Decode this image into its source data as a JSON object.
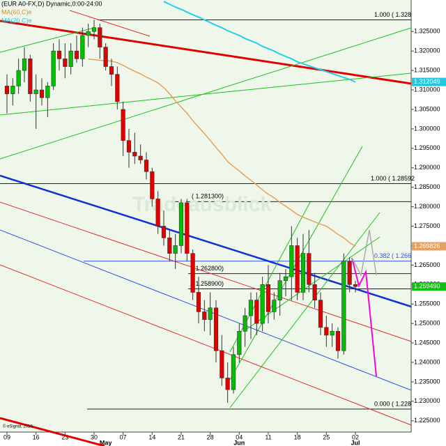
{
  "chart_data": {
    "type": "candlestick",
    "title": "(EUR A0-FX,D) Dynamic,0:00-24:00",
    "indicators": [
      {
        "name": "MA(60,C)e",
        "color": "#d08a3a"
      },
      {
        "name": "MA(20,C)e",
        "color": "#20c8e0"
      }
    ],
    "watermark": "Tradeausblick",
    "copyright": "© eSignal, 2010",
    "categories": [
      "09",
      null,
      null,
      null,
      null,
      "16",
      null,
      null,
      null,
      null,
      "23",
      null,
      null,
      null,
      null,
      "30",
      null,
      null,
      null,
      null,
      "07",
      null,
      null,
      null,
      null,
      "14",
      null,
      null,
      null,
      null,
      "21",
      null,
      null,
      null,
      null,
      "28",
      null,
      null,
      null,
      null,
      "04",
      null,
      null,
      null,
      null,
      "11",
      null,
      null,
      null,
      null,
      "18",
      null,
      null,
      null,
      null,
      "25",
      null,
      null,
      null,
      null,
      "02"
    ],
    "month_categories": [
      null,
      null,
      null,
      null,
      null,
      null,
      null,
      null,
      null,
      null,
      null,
      null,
      null,
      null,
      null,
      null,
      null,
      "May",
      null,
      null,
      null,
      null,
      null,
      null,
      null,
      null,
      null,
      null,
      null,
      null,
      null,
      null,
      null,
      null,
      null,
      null,
      null,
      null,
      null,
      null,
      "Jun",
      null,
      null,
      null,
      null,
      null,
      null,
      null,
      null,
      null,
      null,
      null,
      null,
      null,
      null,
      null,
      null,
      null,
      null,
      null,
      "Jul"
    ],
    "open": [
      1.311,
      1.309,
      1.311,
      1.315,
      1.318,
      1.309,
      1.31,
      1.308,
      1.311,
      1.32,
      1.318,
      1.316,
      1.32,
      1.318,
      1.324,
      1.325,
      1.326,
      1.321,
      1.316,
      1.314,
      1.305,
      1.297,
      1.294,
      1.293,
      1.292,
      1.289,
      1.282,
      1.275,
      1.272,
      1.268,
      1.27,
      1.281,
      1.268,
      1.258,
      1.253,
      1.251,
      1.254,
      1.243,
      1.236,
      1.233,
      1.242,
      1.248,
      1.252,
      1.256,
      1.25,
      1.26,
      1.253,
      1.256,
      1.261,
      1.262,
      1.27,
      1.258,
      1.268,
      1.26,
      1.256,
      1.249,
      1.247,
      1.248,
      1.243,
      1.266,
      1.26
    ],
    "high": [
      1.314,
      1.313,
      1.318,
      1.321,
      1.319,
      1.314,
      1.313,
      1.312,
      1.322,
      1.323,
      1.322,
      1.322,
      1.324,
      1.326,
      1.327,
      1.328,
      1.327,
      1.322,
      1.318,
      1.316,
      1.307,
      1.3,
      1.299,
      1.296,
      1.294,
      1.29,
      1.284,
      1.279,
      1.274,
      1.273,
      1.282,
      1.282,
      1.269,
      1.262,
      1.256,
      1.258,
      1.256,
      1.247,
      1.24,
      1.244,
      1.25,
      1.254,
      1.258,
      1.258,
      1.262,
      1.265,
      1.258,
      1.263,
      1.264,
      1.275,
      1.272,
      1.273,
      1.274,
      1.263,
      1.258,
      1.252,
      1.25,
      1.249,
      1.268,
      1.267,
      1.261
    ],
    "low": [
      1.304,
      1.306,
      1.309,
      1.312,
      1.307,
      1.3,
      1.306,
      1.303,
      1.31,
      1.315,
      1.313,
      1.314,
      1.317,
      1.316,
      1.321,
      1.323,
      1.318,
      1.315,
      1.311,
      1.305,
      1.293,
      1.29,
      1.291,
      1.291,
      1.287,
      1.28,
      1.273,
      1.27,
      1.266,
      1.264,
      1.268,
      1.266,
      1.256,
      1.25,
      1.248,
      1.247,
      1.24,
      1.234,
      1.2296,
      1.232,
      1.24,
      1.244,
      1.246,
      1.247,
      1.248,
      1.25,
      1.251,
      1.252,
      1.257,
      1.256,
      1.256,
      1.256,
      1.258,
      1.254,
      1.247,
      1.244,
      1.244,
      1.241,
      1.242,
      1.258,
      1.258
    ],
    "close": [
      1.309,
      1.311,
      1.315,
      1.318,
      1.309,
      1.31,
      1.308,
      1.311,
      1.32,
      1.318,
      1.316,
      1.32,
      1.318,
      1.324,
      1.325,
      1.326,
      1.321,
      1.316,
      1.314,
      1.307,
      1.297,
      1.294,
      1.293,
      1.292,
      1.289,
      1.282,
      1.275,
      1.272,
      1.268,
      1.27,
      1.281,
      1.268,
      1.258,
      1.253,
      1.251,
      1.254,
      1.243,
      1.236,
      1.233,
      1.242,
      1.248,
      1.252,
      1.256,
      1.25,
      1.26,
      1.253,
      1.256,
      1.261,
      1.262,
      1.27,
      1.258,
      1.268,
      1.26,
      1.256,
      1.249,
      1.247,
      1.248,
      1.243,
      1.266,
      1.26,
      1.2595
    ],
    "up_color": "#00c000",
    "down_color": "#e00000",
    "series": [
      {
        "color": "#e8a060",
        "values": [
          null,
          null,
          null,
          null,
          null,
          null,
          null,
          null,
          null,
          null,
          null,
          null,
          null,
          null,
          1.3179,
          1.3178,
          1.3176,
          1.3175,
          1.3174,
          1.317,
          1.3163,
          1.3155,
          1.3148,
          1.3141,
          1.3133,
          1.3126,
          1.3118,
          1.3106,
          1.309,
          1.3072,
          1.3056,
          1.304,
          1.3021,
          1.3004,
          1.2988,
          1.297,
          1.2952,
          1.2935,
          1.2916,
          1.2903,
          1.2892,
          1.2879,
          1.2868,
          1.2856,
          1.2843,
          1.2832,
          1.2823,
          1.2811,
          1.2801,
          1.2791,
          1.278,
          1.2773,
          1.2767,
          1.2761,
          1.2755,
          1.275,
          1.274,
          1.2729,
          1.272,
          1.2708,
          1.2698
        ]
      },
      {
        "color": "#20d0e8",
        "values": [
          null,
          null,
          null,
          null,
          null,
          null,
          null,
          null,
          null,
          null,
          null,
          null,
          null,
          null,
          null,
          null,
          null,
          null,
          null,
          null,
          null,
          null,
          null,
          null,
          null,
          null,
          null,
          1.3327,
          1.332,
          1.3313,
          1.3307,
          1.33,
          1.3293,
          1.3287,
          1.328,
          1.3273,
          1.3266,
          1.326,
          1.3252,
          1.3246,
          1.324,
          1.3232,
          1.3226,
          1.322,
          1.3212,
          1.3206,
          1.32,
          1.3192,
          1.3186,
          1.318,
          1.3172,
          1.3167,
          1.3162,
          1.3157,
          1.3152,
          1.3147,
          1.3142,
          1.3137,
          1.3132,
          1.3127,
          1.312
        ]
      }
    ],
    "levels": [
      {
        "label": "1.000 ( 1.328",
        "value": 1.328
      },
      {
        "label": "1.000 ( 1.28592",
        "value": 1.28592
      },
      {
        "label": "( 1.281300)",
        "value": 1.2813
      },
      {
        "label": "( 1.262800)",
        "value": 1.2628
      },
      {
        "label": "( 1.258900)",
        "value": 1.2589
      },
      {
        "label": "0.382 ( 1.266",
        "value": 1.266
      },
      {
        "label": "0.000 ( 1.228",
        "value": 1.228
      }
    ],
    "price_tags": [
      {
        "value": 1.312049,
        "color": "#20c8e0"
      },
      {
        "value": 1.269826,
        "color": "#e8a060"
      },
      {
        "value": 1.25949,
        "label": "1.259490",
        "color": "#10c010"
      }
    ],
    "ylim": [
      1.2221,
      1.3331
    ],
    "yticks": [
      {
        "value": 1.225,
        "label": "1.225000"
      },
      {
        "value": 1.23,
        "label": "1.230000"
      },
      {
        "value": 1.235,
        "label": "1.235000"
      },
      {
        "value": 1.24,
        "label": "1.240000"
      },
      {
        "value": 1.245,
        "label": "1.245000"
      },
      {
        "value": 1.25,
        "label": "1.250000"
      },
      {
        "value": 1.255,
        "label": "1.255000"
      },
      {
        "value": 1.26,
        "label": "1.260000"
      },
      {
        "value": 1.265,
        "label": "1.265000"
      },
      {
        "value": 1.27,
        "label": "1.270000"
      },
      {
        "value": 1.275,
        "label": "1.275000"
      },
      {
        "value": 1.28,
        "label": "1.280000"
      },
      {
        "value": 1.285,
        "label": "1.285000"
      },
      {
        "value": 1.29,
        "label": "1.290000"
      },
      {
        "value": 1.295,
        "label": "1.295000"
      },
      {
        "value": 1.3,
        "label": "1.300000"
      },
      {
        "value": 1.305,
        "label": "1.305000"
      },
      {
        "value": 1.31,
        "label": "1.310000"
      },
      {
        "value": 1.315,
        "label": "1.315000"
      },
      {
        "value": 1.32,
        "label": "1.320000"
      },
      {
        "value": 1.325,
        "label": "1.325000"
      }
    ]
  }
}
